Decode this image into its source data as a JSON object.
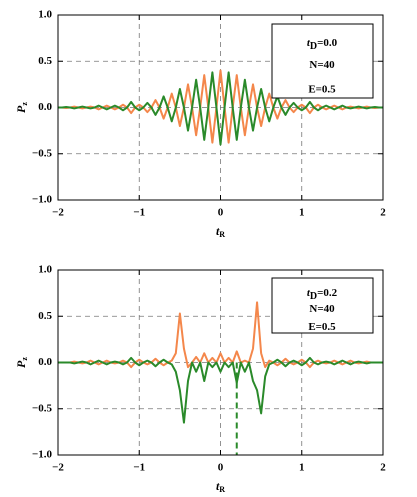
{
  "chart_data": [
    {
      "type": "line",
      "xlabel": "t",
      "xlabel_sub": "R",
      "ylabel": "P",
      "ylabel_sub": "z",
      "annotation": {
        "var": "t",
        "sub": "D",
        "text": "=0.0",
        "lines": [
          "N=40",
          "E=0.5"
        ]
      },
      "xlim": [
        -2,
        2
      ],
      "ylim": [
        -1,
        1
      ],
      "xticks": [
        {
          "value": -2,
          "label": "−2"
        },
        {
          "value": -1,
          "label": "−1"
        },
        0,
        1,
        2
      ],
      "yticks": [
        {
          "value": -1,
          "label": "−1.0"
        },
        {
          "value": -0.5,
          "label": "−0.5"
        },
        {
          "value": 0,
          "label": "0.0"
        },
        {
          "value": 0.5,
          "label": "0.5"
        },
        {
          "value": 1,
          "label": "1.0"
        }
      ],
      "grid": true,
      "x": [
        -2,
        -1.95,
        -1.9,
        -1.85,
        -1.8,
        -1.75,
        -1.7,
        -1.65,
        -1.6,
        -1.55,
        -1.5,
        -1.45,
        -1.4,
        -1.35,
        -1.3,
        -1.25,
        -1.2,
        -1.15,
        -1.1,
        -1.05,
        -1,
        -0.95,
        -0.9,
        -0.85,
        -0.8,
        -0.75,
        -0.7,
        -0.65,
        -0.6,
        -0.55,
        -0.5,
        -0.45,
        -0.4,
        -0.35,
        -0.3,
        -0.25,
        -0.2,
        -0.15,
        -0.1,
        -0.05,
        0,
        0.05,
        0.1,
        0.15,
        0.2,
        0.25,
        0.3,
        0.35,
        0.4,
        0.45,
        0.5,
        0.55,
        0.6,
        0.65,
        0.7,
        0.75,
        0.8,
        0.85,
        0.9,
        0.95,
        1,
        1.05,
        1.1,
        1.15,
        1.2,
        1.25,
        1.3,
        1.35,
        1.4,
        1.45,
        1.5,
        1.55,
        1.6,
        1.65,
        1.7,
        1.75,
        1.8,
        1.85,
        1.9,
        1.95,
        2
      ],
      "series": [
        {
          "color": "#f4874b",
          "values": [
            0,
            0,
            -0.005,
            0,
            0.01,
            0,
            -0.01,
            0,
            0.01,
            0,
            -0.02,
            0,
            0.02,
            0,
            -0.02,
            0,
            0.03,
            0,
            -0.06,
            0,
            0.03,
            0,
            -0.05,
            0,
            0.08,
            0,
            -0.12,
            0,
            0.15,
            0,
            -0.2,
            0,
            0.25,
            0,
            -0.3,
            0,
            0.35,
            0,
            -0.38,
            0,
            0.4,
            0,
            -0.38,
            0,
            0.35,
            0,
            -0.3,
            0,
            0.25,
            0,
            -0.2,
            0,
            0.15,
            0,
            -0.12,
            0,
            0.08,
            0,
            -0.05,
            0,
            0.03,
            0,
            -0.06,
            0,
            0.03,
            0,
            -0.02,
            0,
            0.02,
            0,
            -0.02,
            0,
            0.01,
            0,
            -0.01,
            0,
            0.01,
            0,
            -0.005,
            0,
            0
          ]
        },
        {
          "color": "#2a8a2a",
          "values": [
            0,
            0,
            0.005,
            0,
            -0.01,
            0,
            0.01,
            0,
            -0.01,
            0,
            0.02,
            0,
            -0.02,
            0,
            0.02,
            0,
            -0.03,
            0,
            0.06,
            0,
            -0.03,
            0,
            0.05,
            0,
            -0.08,
            0,
            0.12,
            0,
            -0.15,
            0,
            0.2,
            0,
            -0.25,
            0,
            0.3,
            0,
            -0.35,
            0,
            0.38,
            0,
            -0.4,
            0,
            0.38,
            0,
            -0.35,
            0,
            0.3,
            0,
            -0.25,
            0,
            0.2,
            0,
            -0.15,
            0,
            0.12,
            0,
            -0.08,
            0,
            0.05,
            0,
            -0.03,
            0,
            0.06,
            0,
            -0.03,
            0,
            0.02,
            0,
            -0.02,
            0,
            0.02,
            0,
            -0.01,
            0,
            0.01,
            0,
            -0.01,
            0,
            0.005,
            0,
            0
          ]
        }
      ]
    },
    {
      "type": "line",
      "xlabel": "t",
      "xlabel_sub": "R",
      "ylabel": "P",
      "ylabel_sub": "z",
      "annotation": {
        "var": "t",
        "sub": "D",
        "text": "=0.2",
        "lines": [
          "N=40",
          "E=0.5"
        ]
      },
      "xlim": [
        -2,
        2
      ],
      "ylim": [
        -1,
        1
      ],
      "xticks": [
        {
          "value": -2,
          "label": "−2"
        },
        {
          "value": -1,
          "label": "−1"
        },
        0,
        1,
        2
      ],
      "yticks": [
        {
          "value": -1,
          "label": "−1.0"
        },
        {
          "value": -0.5,
          "label": "−0.5"
        },
        {
          "value": 0,
          "label": "0.0"
        },
        {
          "value": 0.5,
          "label": "0.5"
        },
        {
          "value": 1,
          "label": "1.0"
        }
      ],
      "grid": true,
      "vline": {
        "x": 0.2,
        "from": 0,
        "to": -1,
        "color": "#2a8a2a"
      },
      "x": [
        -2,
        -1.95,
        -1.9,
        -1.85,
        -1.8,
        -1.75,
        -1.7,
        -1.65,
        -1.6,
        -1.55,
        -1.5,
        -1.45,
        -1.4,
        -1.35,
        -1.3,
        -1.25,
        -1.2,
        -1.15,
        -1.1,
        -1.05,
        -1,
        -0.95,
        -0.9,
        -0.85,
        -0.8,
        -0.75,
        -0.7,
        -0.65,
        -0.6,
        -0.55,
        -0.5,
        -0.45,
        -0.4,
        -0.35,
        -0.3,
        -0.25,
        -0.2,
        -0.15,
        -0.1,
        -0.05,
        0,
        0.05,
        0.1,
        0.15,
        0.2,
        0.25,
        0.3,
        0.35,
        0.4,
        0.45,
        0.5,
        0.55,
        0.6,
        0.65,
        0.7,
        0.75,
        0.8,
        0.85,
        0.9,
        0.95,
        1,
        1.05,
        1.1,
        1.15,
        1.2,
        1.25,
        1.3,
        1.35,
        1.4,
        1.45,
        1.5,
        1.55,
        1.6,
        1.65,
        1.7,
        1.75,
        1.8,
        1.85,
        1.9,
        1.95,
        2
      ],
      "series": [
        {
          "color": "#f4874b",
          "values": [
            0,
            0,
            0,
            0,
            0.01,
            0,
            -0.01,
            0,
            0.02,
            0,
            -0.02,
            0,
            0.02,
            0,
            -0.01,
            0,
            0.02,
            0,
            -0.05,
            0,
            0.03,
            0,
            -0.02,
            0,
            0.04,
            0,
            -0.03,
            0,
            0.02,
            0.1,
            0.53,
            0.15,
            -0.05,
            0,
            0.06,
            0,
            0.1,
            0,
            0.05,
            0,
            0.1,
            0,
            0.05,
            0,
            0.12,
            0,
            0.02,
            0,
            0.15,
            0.65,
            0.1,
            -0.05,
            0.02,
            0,
            -0.03,
            0,
            0.04,
            0,
            -0.02,
            0,
            0.03,
            0,
            -0.05,
            0,
            0.02,
            0,
            -0.01,
            0,
            0.02,
            0,
            -0.02,
            0,
            0.02,
            0,
            -0.01,
            0,
            0.01,
            0,
            0,
            0,
            0
          ]
        },
        {
          "color": "#2a8a2a",
          "values": [
            0,
            0,
            0,
            0,
            -0.01,
            0,
            0.01,
            0,
            -0.02,
            0,
            0.02,
            0,
            -0.02,
            0,
            0.01,
            0,
            -0.02,
            0,
            0.05,
            0,
            -0.03,
            0,
            0.02,
            0,
            -0.04,
            0,
            0.03,
            0,
            -0.02,
            -0.1,
            -0.3,
            -0.65,
            -0.2,
            0,
            -0.1,
            0,
            -0.2,
            0,
            -0.05,
            0,
            -0.1,
            0,
            -0.05,
            0,
            -0.22,
            0,
            -0.1,
            0,
            -0.2,
            -0.3,
            -0.55,
            -0.15,
            -0.02,
            0,
            0.03,
            0,
            -0.04,
            0,
            0.02,
            0,
            -0.03,
            0,
            0.05,
            0,
            -0.02,
            0,
            0.01,
            0,
            -0.02,
            0,
            0.02,
            0,
            -0.02,
            0,
            0.01,
            0,
            -0.01,
            0,
            0,
            0,
            0
          ]
        }
      ]
    }
  ]
}
